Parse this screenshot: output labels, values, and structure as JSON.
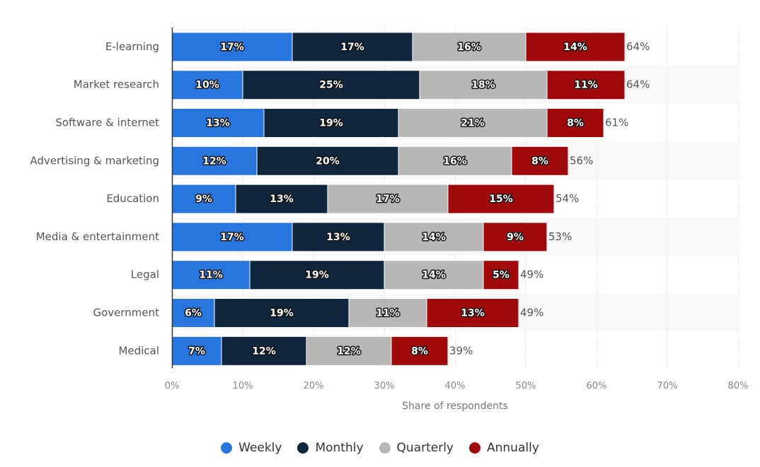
{
  "chart_data": {
    "type": "bar",
    "orientation": "horizontal",
    "stacked": true,
    "title": "",
    "xlabel": "Share of respondents",
    "ylabel": "",
    "xlim": [
      0,
      80
    ],
    "xticks": [
      0,
      10,
      20,
      30,
      40,
      50,
      60,
      70,
      80
    ],
    "xtick_labels": [
      "0%",
      "10%",
      "20%",
      "30%",
      "40%",
      "50%",
      "60%",
      "70%",
      "80%"
    ],
    "grid": true,
    "legend_position": "bottom",
    "categories": [
      "E-learning",
      "Market research",
      "Software & internet",
      "Advertising & marketing",
      "Education",
      "Media & entertainment",
      "Legal",
      "Government",
      "Medical"
    ],
    "series": [
      {
        "name": "Weekly",
        "color": "#2876dd",
        "values": [
          17,
          10,
          13,
          12,
          9,
          17,
          11,
          6,
          7
        ]
      },
      {
        "name": "Monthly",
        "color": "#10263e",
        "values": [
          17,
          25,
          19,
          20,
          13,
          13,
          19,
          19,
          12
        ]
      },
      {
        "name": "Quarterly",
        "color": "#b7b7b7",
        "values": [
          16,
          18,
          21,
          16,
          17,
          14,
          14,
          11,
          12
        ]
      },
      {
        "name": "Annually",
        "color": "#a10a0a",
        "values": [
          14,
          11,
          8,
          8,
          15,
          9,
          5,
          13,
          8
        ]
      }
    ],
    "totals": [
      64,
      64,
      61,
      56,
      54,
      53,
      49,
      49,
      39
    ],
    "value_suffix": "%"
  }
}
